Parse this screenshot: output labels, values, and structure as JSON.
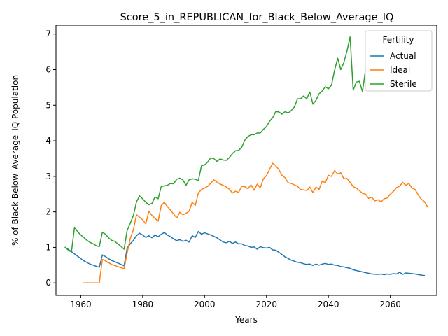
{
  "chart_data": {
    "type": "line",
    "title": "Score_5_in_REPUBLICAN_for_Black_Below_Average_IQ",
    "xlabel": "Years",
    "ylabel": "% of Black Below_Average_IQ Population",
    "xlim": [
      1952,
      2075
    ],
    "ylim": [
      -0.35,
      7.25
    ],
    "xticks": [
      1960,
      1980,
      2000,
      2020,
      2040,
      2060
    ],
    "yticks": [
      0,
      1,
      2,
      3,
      4,
      5,
      6,
      7
    ],
    "grid": false,
    "legend": {
      "title": "Fertility",
      "placement": "top-right"
    },
    "series": [
      {
        "name": "Actual",
        "color": "#1f77b4",
        "points": [
          [
            1955,
            1.0
          ],
          [
            1957,
            0.88
          ],
          [
            1959,
            0.75
          ],
          [
            1961,
            0.62
          ],
          [
            1963,
            0.53
          ],
          [
            1965,
            0.47
          ],
          [
            1966,
            0.44
          ],
          [
            1967,
            0.79
          ],
          [
            1968,
            0.74
          ],
          [
            1969,
            0.68
          ],
          [
            1970,
            0.63
          ],
          [
            1972,
            0.56
          ],
          [
            1974,
            0.48
          ],
          [
            1975,
            0.98
          ],
          [
            1976,
            1.1
          ],
          [
            1977,
            1.2
          ],
          [
            1978,
            1.33
          ],
          [
            1979,
            1.4
          ],
          [
            1980,
            1.35
          ],
          [
            1981,
            1.28
          ],
          [
            1982,
            1.33
          ],
          [
            1983,
            1.27
          ],
          [
            1984,
            1.35
          ],
          [
            1985,
            1.3
          ],
          [
            1986,
            1.37
          ],
          [
            1987,
            1.42
          ],
          [
            1988,
            1.35
          ],
          [
            1989,
            1.3
          ],
          [
            1990,
            1.24
          ],
          [
            1991,
            1.19
          ],
          [
            1992,
            1.22
          ],
          [
            1993,
            1.17
          ],
          [
            1994,
            1.2
          ],
          [
            1995,
            1.15
          ],
          [
            1996,
            1.33
          ],
          [
            1997,
            1.28
          ],
          [
            1998,
            1.45
          ],
          [
            1999,
            1.37
          ],
          [
            2000,
            1.41
          ],
          [
            2001,
            1.38
          ],
          [
            2002,
            1.35
          ],
          [
            2003,
            1.31
          ],
          [
            2004,
            1.27
          ],
          [
            2005,
            1.21
          ],
          [
            2006,
            1.15
          ],
          [
            2007,
            1.13
          ],
          [
            2008,
            1.17
          ],
          [
            2009,
            1.11
          ],
          [
            2010,
            1.15
          ],
          [
            2011,
            1.1
          ],
          [
            2012,
            1.1
          ],
          [
            2013,
            1.05
          ],
          [
            2014,
            1.04
          ],
          [
            2015,
            1.0
          ],
          [
            2016,
            1.01
          ],
          [
            2017,
            0.95
          ],
          [
            2018,
            1.02
          ],
          [
            2019,
            0.99
          ],
          [
            2020,
            0.98
          ],
          [
            2021,
            1.0
          ],
          [
            2022,
            0.93
          ],
          [
            2023,
            0.92
          ],
          [
            2024,
            0.86
          ],
          [
            2025,
            0.8
          ],
          [
            2026,
            0.73
          ],
          [
            2027,
            0.69
          ],
          [
            2028,
            0.64
          ],
          [
            2029,
            0.61
          ],
          [
            2030,
            0.58
          ],
          [
            2031,
            0.57
          ],
          [
            2032,
            0.54
          ],
          [
            2033,
            0.52
          ],
          [
            2034,
            0.53
          ],
          [
            2035,
            0.49
          ],
          [
            2036,
            0.53
          ],
          [
            2037,
            0.5
          ],
          [
            2038,
            0.53
          ],
          [
            2039,
            0.55
          ],
          [
            2040,
            0.52
          ],
          [
            2041,
            0.53
          ],
          [
            2042,
            0.5
          ],
          [
            2043,
            0.49
          ],
          [
            2044,
            0.46
          ],
          [
            2045,
            0.45
          ],
          [
            2046,
            0.43
          ],
          [
            2047,
            0.41
          ],
          [
            2048,
            0.37
          ],
          [
            2050,
            0.33
          ],
          [
            2052,
            0.29
          ],
          [
            2054,
            0.25
          ],
          [
            2056,
            0.24
          ],
          [
            2057,
            0.25
          ],
          [
            2058,
            0.23
          ],
          [
            2059,
            0.25
          ],
          [
            2060,
            0.24
          ],
          [
            2061,
            0.26
          ],
          [
            2062,
            0.25
          ],
          [
            2063,
            0.3
          ],
          [
            2064,
            0.24
          ],
          [
            2065,
            0.28
          ],
          [
            2066,
            0.27
          ],
          [
            2068,
            0.25
          ],
          [
            2070,
            0.22
          ],
          [
            2071,
            0.21
          ]
        ]
      },
      {
        "name": "Ideal",
        "color": "#ff7f0e",
        "points": [
          [
            1961,
            0.0
          ],
          [
            1963,
            0.0
          ],
          [
            1965,
            0.0
          ],
          [
            1966,
            0.0
          ],
          [
            1967,
            0.66
          ],
          [
            1968,
            0.62
          ],
          [
            1969,
            0.57
          ],
          [
            1970,
            0.52
          ],
          [
            1972,
            0.46
          ],
          [
            1974,
            0.4
          ],
          [
            1975,
            0.85
          ],
          [
            1976,
            1.25
          ],
          [
            1977,
            1.5
          ],
          [
            1978,
            1.92
          ],
          [
            1979,
            1.85
          ],
          [
            1980,
            1.78
          ],
          [
            1981,
            1.66
          ],
          [
            1982,
            2.02
          ],
          [
            1983,
            1.9
          ],
          [
            1984,
            1.82
          ],
          [
            1985,
            1.74
          ],
          [
            1986,
            2.18
          ],
          [
            1987,
            2.27
          ],
          [
            1988,
            2.15
          ],
          [
            1989,
            2.05
          ],
          [
            1990,
            1.94
          ],
          [
            1991,
            1.83
          ],
          [
            1992,
            1.99
          ],
          [
            1993,
            1.92
          ],
          [
            1994,
            1.96
          ],
          [
            1995,
            2.02
          ],
          [
            1996,
            2.27
          ],
          [
            1997,
            2.18
          ],
          [
            1998,
            2.53
          ],
          [
            1999,
            2.63
          ],
          [
            2000,
            2.67
          ],
          [
            2001,
            2.72
          ],
          [
            2002,
            2.81
          ],
          [
            2003,
            2.9
          ],
          [
            2004,
            2.84
          ],
          [
            2005,
            2.78
          ],
          [
            2006,
            2.75
          ],
          [
            2007,
            2.7
          ],
          [
            2008,
            2.64
          ],
          [
            2009,
            2.53
          ],
          [
            2010,
            2.58
          ],
          [
            2011,
            2.55
          ],
          [
            2012,
            2.72
          ],
          [
            2013,
            2.71
          ],
          [
            2014,
            2.65
          ],
          [
            2015,
            2.76
          ],
          [
            2016,
            2.61
          ],
          [
            2017,
            2.78
          ],
          [
            2018,
            2.68
          ],
          [
            2019,
            2.93
          ],
          [
            2020,
            3.02
          ],
          [
            2021,
            3.2
          ],
          [
            2022,
            3.37
          ],
          [
            2023,
            3.3
          ],
          [
            2024,
            3.19
          ],
          [
            2025,
            3.03
          ],
          [
            2026,
            2.96
          ],
          [
            2027,
            2.82
          ],
          [
            2028,
            2.8
          ],
          [
            2029,
            2.76
          ],
          [
            2030,
            2.72
          ],
          [
            2031,
            2.63
          ],
          [
            2032,
            2.62
          ],
          [
            2033,
            2.6
          ],
          [
            2034,
            2.7
          ],
          [
            2035,
            2.54
          ],
          [
            2036,
            2.7
          ],
          [
            2037,
            2.63
          ],
          [
            2038,
            2.87
          ],
          [
            2039,
            2.82
          ],
          [
            2040,
            3.03
          ],
          [
            2041,
            3.0
          ],
          [
            2042,
            3.16
          ],
          [
            2043,
            3.07
          ],
          [
            2044,
            3.1
          ],
          [
            2045,
            2.93
          ],
          [
            2046,
            2.94
          ],
          [
            2047,
            2.83
          ],
          [
            2048,
            2.71
          ],
          [
            2049,
            2.67
          ],
          [
            2050,
            2.6
          ],
          [
            2051,
            2.52
          ],
          [
            2052,
            2.5
          ],
          [
            2053,
            2.38
          ],
          [
            2054,
            2.41
          ],
          [
            2055,
            2.31
          ],
          [
            2056,
            2.34
          ],
          [
            2057,
            2.28
          ],
          [
            2058,
            2.37
          ],
          [
            2059,
            2.39
          ],
          [
            2060,
            2.5
          ],
          [
            2061,
            2.58
          ],
          [
            2062,
            2.68
          ],
          [
            2063,
            2.72
          ],
          [
            2064,
            2.83
          ],
          [
            2065,
            2.75
          ],
          [
            2066,
            2.8
          ],
          [
            2067,
            2.67
          ],
          [
            2068,
            2.63
          ],
          [
            2069,
            2.48
          ],
          [
            2070,
            2.36
          ],
          [
            2071,
            2.29
          ],
          [
            2072,
            2.14
          ]
        ]
      },
      {
        "name": "Sterile",
        "color": "#2ca02c",
        "points": [
          [
            1955,
            1.0
          ],
          [
            1956,
            0.92
          ],
          [
            1957,
            0.87
          ],
          [
            1958,
            1.57
          ],
          [
            1959,
            1.44
          ],
          [
            1960,
            1.35
          ],
          [
            1961,
            1.28
          ],
          [
            1962,
            1.2
          ],
          [
            1963,
            1.14
          ],
          [
            1964,
            1.1
          ],
          [
            1965,
            1.05
          ],
          [
            1966,
            1.02
          ],
          [
            1967,
            1.43
          ],
          [
            1968,
            1.37
          ],
          [
            1969,
            1.27
          ],
          [
            1970,
            1.2
          ],
          [
            1971,
            1.17
          ],
          [
            1972,
            1.1
          ],
          [
            1973,
            1.03
          ],
          [
            1974,
            0.95
          ],
          [
            1975,
            1.48
          ],
          [
            1976,
            1.68
          ],
          [
            1977,
            1.9
          ],
          [
            1978,
            2.28
          ],
          [
            1979,
            2.45
          ],
          [
            1980,
            2.37
          ],
          [
            1981,
            2.27
          ],
          [
            1982,
            2.2
          ],
          [
            1983,
            2.24
          ],
          [
            1984,
            2.42
          ],
          [
            1985,
            2.37
          ],
          [
            1986,
            2.72
          ],
          [
            1987,
            2.73
          ],
          [
            1988,
            2.75
          ],
          [
            1989,
            2.8
          ],
          [
            1990,
            2.79
          ],
          [
            1991,
            2.92
          ],
          [
            1992,
            2.95
          ],
          [
            1993,
            2.9
          ],
          [
            1994,
            2.75
          ],
          [
            1995,
            2.9
          ],
          [
            1996,
            2.93
          ],
          [
            1997,
            2.92
          ],
          [
            1998,
            2.88
          ],
          [
            1999,
            3.3
          ],
          [
            2000,
            3.32
          ],
          [
            2001,
            3.4
          ],
          [
            2002,
            3.52
          ],
          [
            2003,
            3.5
          ],
          [
            2004,
            3.42
          ],
          [
            2005,
            3.49
          ],
          [
            2006,
            3.46
          ],
          [
            2007,
            3.45
          ],
          [
            2008,
            3.53
          ],
          [
            2009,
            3.64
          ],
          [
            2010,
            3.72
          ],
          [
            2011,
            3.73
          ],
          [
            2012,
            3.82
          ],
          [
            2013,
            4.02
          ],
          [
            2014,
            4.12
          ],
          [
            2015,
            4.17
          ],
          [
            2016,
            4.17
          ],
          [
            2017,
            4.22
          ],
          [
            2018,
            4.22
          ],
          [
            2019,
            4.32
          ],
          [
            2020,
            4.4
          ],
          [
            2021,
            4.55
          ],
          [
            2022,
            4.65
          ],
          [
            2023,
            4.82
          ],
          [
            2024,
            4.81
          ],
          [
            2025,
            4.75
          ],
          [
            2026,
            4.82
          ],
          [
            2027,
            4.78
          ],
          [
            2028,
            4.85
          ],
          [
            2029,
            4.95
          ],
          [
            2030,
            5.18
          ],
          [
            2031,
            5.18
          ],
          [
            2032,
            5.26
          ],
          [
            2033,
            5.18
          ],
          [
            2034,
            5.37
          ],
          [
            2035,
            5.03
          ],
          [
            2036,
            5.14
          ],
          [
            2037,
            5.32
          ],
          [
            2038,
            5.4
          ],
          [
            2039,
            5.52
          ],
          [
            2040,
            5.46
          ],
          [
            2041,
            5.56
          ],
          [
            2042,
            5.98
          ],
          [
            2043,
            6.32
          ],
          [
            2044,
            6.0
          ],
          [
            2045,
            6.2
          ],
          [
            2046,
            6.52
          ],
          [
            2047,
            6.92
          ],
          [
            2048,
            5.42
          ],
          [
            2049,
            5.65
          ],
          [
            2050,
            5.67
          ],
          [
            2051,
            5.38
          ],
          [
            2052,
            6.0
          ]
        ]
      }
    ]
  }
}
